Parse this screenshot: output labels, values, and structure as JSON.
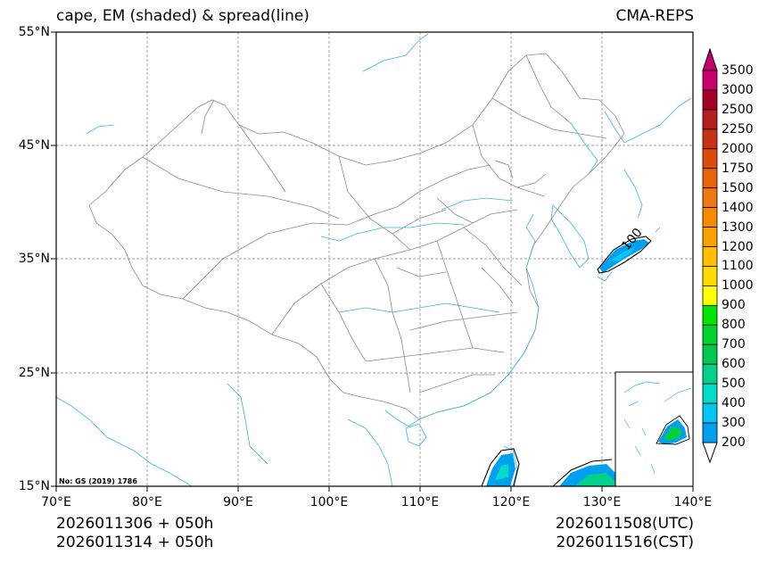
{
  "title": {
    "left": "cape, EM (shaded) & spread(line)",
    "right": "CMA-REPS"
  },
  "axes": {
    "lat_labels": [
      "55°N",
      "45°N",
      "35°N",
      "25°N",
      "15°N"
    ],
    "lon_labels": [
      "70°E",
      "80°E",
      "90°E",
      "100°E",
      "110°E",
      "120°E",
      "130°E",
      "140°E"
    ]
  },
  "map_extent": {
    "lon_min": 70,
    "lon_max": 140,
    "lat_min": 15,
    "lat_max": 55
  },
  "contour_label": "100",
  "colorbar": {
    "labels": [
      "3500",
      "3000",
      "2500",
      "2250",
      "2000",
      "1750",
      "1500",
      "1400",
      "1300",
      "1200",
      "1100",
      "1000",
      "900",
      "800",
      "700",
      "600",
      "500",
      "400",
      "300",
      "200"
    ],
    "colors": [
      "#c8006e",
      "#a50026",
      "#b41e1e",
      "#c83214",
      "#dc4b0a",
      "#e6640a",
      "#f07814",
      "#f58c00",
      "#faa000",
      "#ffbe00",
      "#ffdc00",
      "#ffff00",
      "#00e600",
      "#00d232",
      "#00c850",
      "#00d28c",
      "#00dcc8",
      "#00c8f0",
      "#00a0f0"
    ]
  },
  "footer": {
    "init_utc": "2026011306  +  050h",
    "init_cst": "2026011314  +  050h",
    "valid_utc": "2026011508(UTC)",
    "valid_cst": "2026011516(CST)"
  },
  "stamp": "No: GS (2019) 1786",
  "colors": {
    "coast": "#3cb4e6",
    "border": "#8a8a8a",
    "grid": "#808080"
  }
}
